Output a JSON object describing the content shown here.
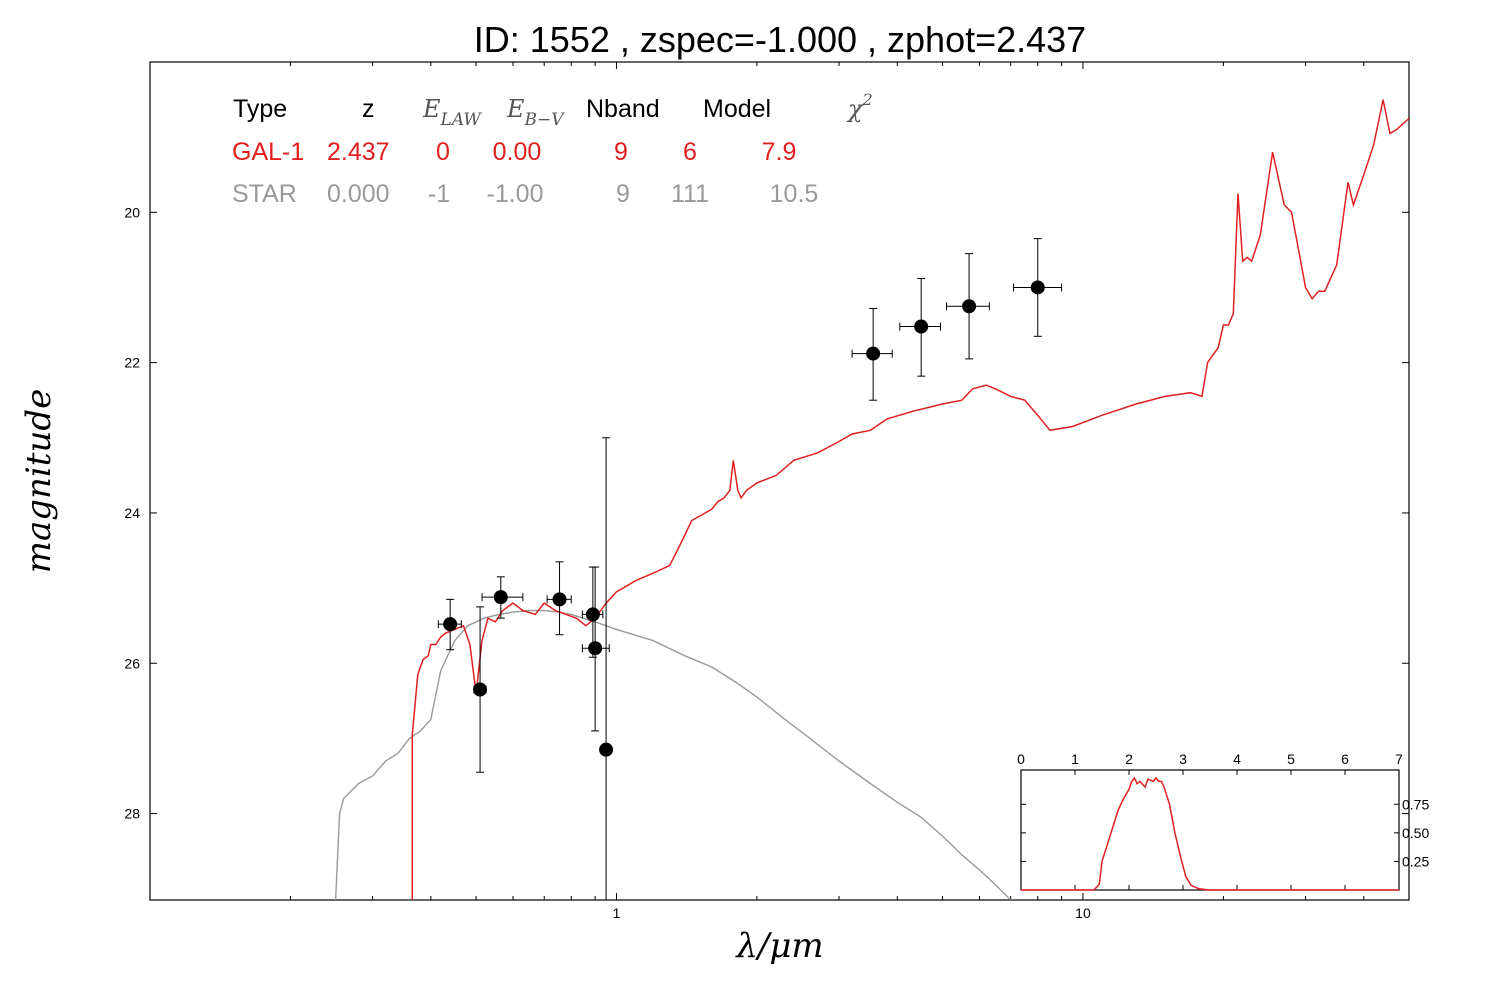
{
  "colors": {
    "galaxy": "#e02020",
    "star": "#999999",
    "points": "#000000"
  },
  "chart_data": {
    "type": "scatter",
    "title": "ID:  1552  , zspec=-1.000 , zphot=2.437",
    "xlabel": "λ/μm",
    "ylabel": "magnitude",
    "x_scale": "log",
    "x_range": [
      0.1,
      50
    ],
    "y_range": [
      29.15,
      18.0
    ],
    "y_inverted": true,
    "x_ticks": [
      {
        "value": 1,
        "label": "1"
      },
      {
        "value": 10,
        "label": "10"
      }
    ],
    "y_ticks": [
      {
        "value": 20,
        "label": "20"
      },
      {
        "value": 22,
        "label": "22"
      },
      {
        "value": 24,
        "label": "24"
      },
      {
        "value": 26,
        "label": "26"
      },
      {
        "value": 28,
        "label": "28"
      }
    ],
    "table": {
      "headers": [
        "Type",
        "z",
        "E_LAW",
        "E_B−V",
        "Nband",
        "Model",
        "χ²"
      ],
      "header_symbols": {
        "E_LAW": [
          "E",
          "LAW"
        ],
        "E_B−V": [
          "E",
          "B−V"
        ],
        "χ²": [
          "χ",
          "2"
        ]
      },
      "rows": [
        {
          "type": "GAL-1",
          "z": "2.437",
          "elaw": "0",
          "ebv": "0.00",
          "nband": "9",
          "model": "6",
          "chi2": "7.9"
        },
        {
          "type": "STAR",
          "z": "0.000",
          "elaw": "-1",
          "ebv": "-1.00",
          "nband": "9",
          "model": "111",
          "chi2": "10.5"
        }
      ]
    },
    "photometry": [
      {
        "x": 0.44,
        "y": 25.48,
        "xerr": [
          0.415,
          0.465
        ],
        "yerr": [
          25.15,
          25.82
        ]
      },
      {
        "x": 0.51,
        "y": 26.35,
        "xerr": [
          0.495,
          0.525
        ],
        "yerr": [
          25.25,
          27.45
        ]
      },
      {
        "x": 0.565,
        "y": 25.12,
        "xerr": [
          0.515,
          0.63
        ],
        "yerr": [
          24.85,
          25.4
        ]
      },
      {
        "x": 0.755,
        "y": 25.15,
        "xerr": [
          0.71,
          0.8
        ],
        "yerr": [
          24.65,
          25.62
        ]
      },
      {
        "x": 0.89,
        "y": 25.35,
        "xerr": [
          0.845,
          0.935
        ],
        "yerr": [
          24.72,
          25.92
        ]
      },
      {
        "x": 0.9,
        "y": 25.8,
        "xerr": [
          0.845,
          0.965
        ],
        "yerr": [
          24.72,
          26.9
        ]
      },
      {
        "x": 0.95,
        "y": 27.15,
        "xerr": [
          0.935,
          0.965
        ],
        "yerr": [
          23.0,
          29.15
        ]
      },
      {
        "x": 3.55,
        "y": 21.88,
        "xerr": [
          3.2,
          3.9
        ],
        "yerr": [
          21.28,
          22.5
        ]
      },
      {
        "x": 4.5,
        "y": 21.52,
        "xerr": [
          4.05,
          4.95
        ],
        "yerr": [
          20.88,
          22.18
        ]
      },
      {
        "x": 5.7,
        "y": 21.25,
        "xerr": [
          5.1,
          6.3
        ],
        "yerr": [
          20.55,
          21.95
        ]
      },
      {
        "x": 8.0,
        "y": 21.0,
        "xerr": [
          7.1,
          9.0
        ],
        "yerr": [
          20.35,
          21.65
        ]
      }
    ],
    "galaxy_sed": [
      [
        0.365,
        29.15
      ],
      [
        0.365,
        26.95
      ],
      [
        0.375,
        26.15
      ],
      [
        0.385,
        25.95
      ],
      [
        0.395,
        25.9
      ],
      [
        0.4,
        25.75
      ],
      [
        0.41,
        25.75
      ],
      [
        0.42,
        25.65
      ],
      [
        0.43,
        25.6
      ],
      [
        0.45,
        25.55
      ],
      [
        0.47,
        25.5
      ],
      [
        0.485,
        25.75
      ],
      [
        0.5,
        26.4
      ],
      [
        0.515,
        25.7
      ],
      [
        0.53,
        25.4
      ],
      [
        0.55,
        25.45
      ],
      [
        0.57,
        25.3
      ],
      [
        0.6,
        25.2
      ],
      [
        0.63,
        25.3
      ],
      [
        0.67,
        25.35
      ],
      [
        0.7,
        25.2
      ],
      [
        0.74,
        25.3
      ],
      [
        0.78,
        25.35
      ],
      [
        0.82,
        25.4
      ],
      [
        0.86,
        25.5
      ],
      [
        0.9,
        25.4
      ],
      [
        0.95,
        25.2
      ],
      [
        1.0,
        25.05
      ],
      [
        1.1,
        24.9
      ],
      [
        1.2,
        24.8
      ],
      [
        1.3,
        24.7
      ],
      [
        1.35,
        24.5
      ],
      [
        1.4,
        24.3
      ],
      [
        1.45,
        24.1
      ],
      [
        1.55,
        24.0
      ],
      [
        1.6,
        23.95
      ],
      [
        1.65,
        23.85
      ],
      [
        1.7,
        23.8
      ],
      [
        1.75,
        23.7
      ],
      [
        1.78,
        23.3
      ],
      [
        1.82,
        23.7
      ],
      [
        1.85,
        23.8
      ],
      [
        1.9,
        23.7
      ],
      [
        2.0,
        23.6
      ],
      [
        2.2,
        23.5
      ],
      [
        2.4,
        23.3
      ],
      [
        2.7,
        23.2
      ],
      [
        3.0,
        23.05
      ],
      [
        3.2,
        22.95
      ],
      [
        3.5,
        22.9
      ],
      [
        3.8,
        22.75
      ],
      [
        4.3,
        22.65
      ],
      [
        5.0,
        22.55
      ],
      [
        5.5,
        22.5
      ],
      [
        5.8,
        22.35
      ],
      [
        6.2,
        22.3
      ],
      [
        6.5,
        22.35
      ],
      [
        7.0,
        22.45
      ],
      [
        7.5,
        22.5
      ],
      [
        8.0,
        22.7
      ],
      [
        8.5,
        22.9
      ],
      [
        9.5,
        22.85
      ],
      [
        11.0,
        22.7
      ],
      [
        13.0,
        22.55
      ],
      [
        15.0,
        22.45
      ],
      [
        17.0,
        22.4
      ],
      [
        18.0,
        22.45
      ],
      [
        18.5,
        22.0
      ],
      [
        19.5,
        21.8
      ],
      [
        20.0,
        21.5
      ],
      [
        20.5,
        21.5
      ],
      [
        21.0,
        21.35
      ],
      [
        21.5,
        19.75
      ],
      [
        22.0,
        20.65
      ],
      [
        22.5,
        20.6
      ],
      [
        23.0,
        20.65
      ],
      [
        24.0,
        20.3
      ],
      [
        25.5,
        19.2
      ],
      [
        27.0,
        19.9
      ],
      [
        28.0,
        20.0
      ],
      [
        29.0,
        20.5
      ],
      [
        30.0,
        21.0
      ],
      [
        31.0,
        21.15
      ],
      [
        32.0,
        21.05
      ],
      [
        33.0,
        21.05
      ],
      [
        35.0,
        20.7
      ],
      [
        37.0,
        19.6
      ],
      [
        38.0,
        19.9
      ],
      [
        40.0,
        19.5
      ],
      [
        42.0,
        19.1
      ],
      [
        44.0,
        18.5
      ],
      [
        45.5,
        18.95
      ],
      [
        47.0,
        18.9
      ],
      [
        50.0,
        18.75
      ]
    ],
    "star_sed": [
      [
        0.25,
        29.15
      ],
      [
        0.255,
        28.0
      ],
      [
        0.26,
        27.8
      ],
      [
        0.265,
        27.75
      ],
      [
        0.28,
        27.6
      ],
      [
        0.3,
        27.5
      ],
      [
        0.32,
        27.3
      ],
      [
        0.34,
        27.2
      ],
      [
        0.36,
        27.0
      ],
      [
        0.38,
        26.9
      ],
      [
        0.4,
        26.75
      ],
      [
        0.42,
        26.1
      ],
      [
        0.45,
        25.7
      ],
      [
        0.48,
        25.5
      ],
      [
        0.52,
        25.4
      ],
      [
        0.56,
        25.35
      ],
      [
        0.6,
        25.32
      ],
      [
        0.65,
        25.3
      ],
      [
        0.7,
        25.3
      ],
      [
        0.75,
        25.32
      ],
      [
        0.8,
        25.35
      ],
      [
        0.9,
        25.45
      ],
      [
        1.0,
        25.55
      ],
      [
        1.2,
        25.7
      ],
      [
        1.4,
        25.9
      ],
      [
        1.6,
        26.05
      ],
      [
        1.8,
        26.25
      ],
      [
        2.0,
        26.45
      ],
      [
        2.3,
        26.75
      ],
      [
        2.6,
        27.0
      ],
      [
        3.0,
        27.3
      ],
      [
        3.5,
        27.6
      ],
      [
        4.0,
        27.85
      ],
      [
        4.5,
        28.05
      ],
      [
        5.0,
        28.3
      ],
      [
        5.5,
        28.55
      ],
      [
        6.0,
        28.75
      ],
      [
        6.5,
        28.95
      ],
      [
        7.0,
        29.15
      ]
    ],
    "inset": {
      "x_range": [
        0,
        7
      ],
      "y_range": [
        0,
        1.05
      ],
      "x_ticks": [
        0,
        1,
        2,
        3,
        4,
        5,
        6,
        7
      ],
      "y_ticks": [
        {
          "value": 0.25,
          "label": "0.25"
        },
        {
          "value": 0.5,
          "label": "0.50"
        },
        {
          "value": 0.75,
          "label": "0.75"
        }
      ],
      "pdz": [
        [
          0,
          0
        ],
        [
          1.35,
          0
        ],
        [
          1.45,
          0.05
        ],
        [
          1.5,
          0.25
        ],
        [
          1.6,
          0.4
        ],
        [
          1.7,
          0.55
        ],
        [
          1.8,
          0.7
        ],
        [
          1.9,
          0.8
        ],
        [
          2.0,
          0.88
        ],
        [
          2.05,
          0.95
        ],
        [
          2.1,
          0.98
        ],
        [
          2.15,
          0.93
        ],
        [
          2.2,
          0.95
        ],
        [
          2.3,
          0.9
        ],
        [
          2.35,
          0.97
        ],
        [
          2.45,
          0.95
        ],
        [
          2.5,
          0.98
        ],
        [
          2.55,
          0.95
        ],
        [
          2.6,
          0.95
        ],
        [
          2.65,
          0.9
        ],
        [
          2.75,
          0.75
        ],
        [
          2.85,
          0.5
        ],
        [
          2.95,
          0.3
        ],
        [
          3.05,
          0.12
        ],
        [
          3.15,
          0.04
        ],
        [
          3.3,
          0.01
        ],
        [
          3.5,
          0
        ],
        [
          7,
          0
        ]
      ]
    }
  }
}
